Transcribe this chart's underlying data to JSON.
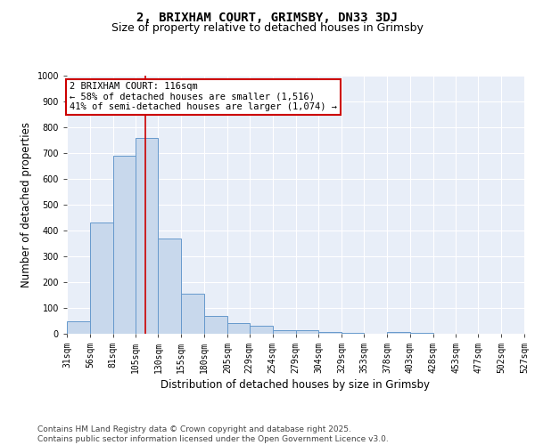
{
  "title": "2, BRIXHAM COURT, GRIMSBY, DN33 3DJ",
  "subtitle": "Size of property relative to detached houses in Grimsby",
  "xlabel": "Distribution of detached houses by size in Grimsby",
  "ylabel": "Number of detached properties",
  "bar_values": [
    50,
    430,
    690,
    760,
    370,
    155,
    70,
    40,
    30,
    15,
    15,
    8,
    5,
    0,
    8,
    5,
    0,
    0,
    0,
    0
  ],
  "bin_edges": [
    31,
    56,
    81,
    105,
    130,
    155,
    180,
    205,
    229,
    254,
    279,
    304,
    329,
    353,
    378,
    403,
    428,
    453,
    477,
    502,
    527
  ],
  "xlabels": [
    "31sqm",
    "56sqm",
    "81sqm",
    "105sqm",
    "130sqm",
    "155sqm",
    "180sqm",
    "205sqm",
    "229sqm",
    "254sqm",
    "279sqm",
    "304sqm",
    "329sqm",
    "353sqm",
    "378sqm",
    "403sqm",
    "428sqm",
    "453sqm",
    "477sqm",
    "502sqm",
    "527sqm"
  ],
  "bar_color": "#c8d8ec",
  "bar_edge_color": "#6699cc",
  "red_line_x": 116,
  "annotation_text": "2 BRIXHAM COURT: 116sqm\n← 58% of detached houses are smaller (1,516)\n41% of semi-detached houses are larger (1,074) →",
  "annotation_box_color": "#ffffff",
  "annotation_box_edge_color": "#cc0000",
  "ylim": [
    0,
    1000
  ],
  "yticks": [
    0,
    100,
    200,
    300,
    400,
    500,
    600,
    700,
    800,
    900,
    1000
  ],
  "background_color": "#e8eef8",
  "footer_text": "Contains HM Land Registry data © Crown copyright and database right 2025.\nContains public sector information licensed under the Open Government Licence v3.0.",
  "title_fontsize": 10,
  "subtitle_fontsize": 9,
  "axis_label_fontsize": 8.5,
  "tick_fontsize": 7,
  "annotation_fontsize": 7.5,
  "footer_fontsize": 6.5
}
